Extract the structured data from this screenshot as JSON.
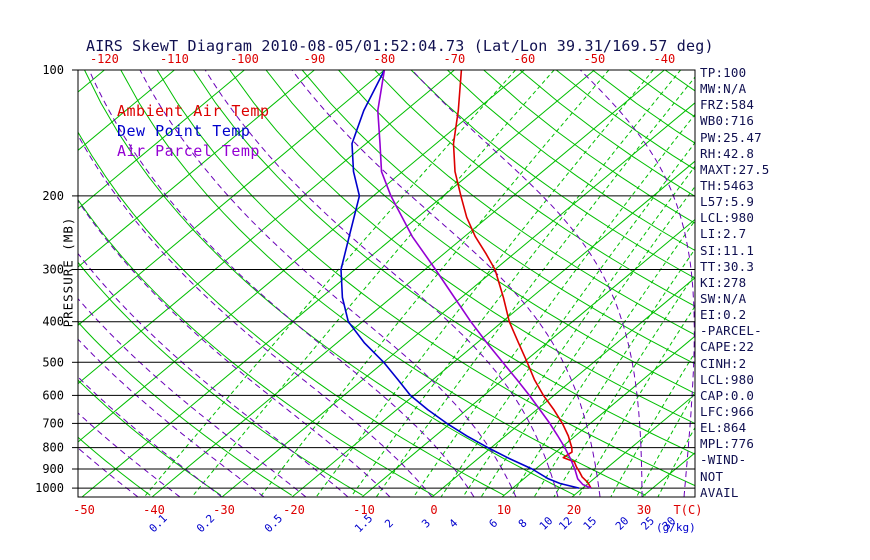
{
  "title": "AIRS SkewT Diagram 2010-08-05/01:52:04.73 (Lat/Lon 39.31/169.57 deg)",
  "legend": {
    "ambient": "Ambient Air Temp",
    "dewpoint": "Dew Point Temp",
    "parcel": "Air Parcel Temp"
  },
  "axes": {
    "y_label": "PRESSURE (MB)",
    "pressure_ticks": [
      100,
      200,
      300,
      400,
      500,
      600,
      700,
      800,
      900,
      1000
    ],
    "top_temp_ticks": [
      -120,
      -110,
      -100,
      -90,
      -80,
      -70,
      -60,
      -50,
      -40
    ],
    "bottom_temp_ticks": [
      -50,
      -40,
      -30,
      -20,
      -10,
      0,
      10,
      20,
      30
    ],
    "bottom_temp_unit": "T(C)",
    "mixing_ratio_ticks": [
      0.1,
      0.2,
      0.5,
      1.5,
      2,
      3,
      4,
      6,
      8,
      10,
      12,
      15,
      20,
      25,
      30
    ],
    "mixing_ratio_unit": "(g/kg)"
  },
  "panel": {
    "lines": [
      "TP:100",
      "MW:N/A",
      "FRZ:584",
      "WB0:716",
      "PW:25.47",
      "RH:42.8",
      "MAXT:27.5",
      "TH:5463",
      "L57:5.9",
      "LCL:980",
      "LI:2.7",
      "SI:11.1",
      "TT:30.3",
      "KI:278",
      "SW:N/A",
      "EI:0.2",
      "-PARCEL-",
      "CAPE:22",
      "CINH:2",
      "LCL:980",
      "CAP:0.0",
      "LFC:966",
      "EL:864",
      "MPL:776",
      "-WIND-",
      "NOT",
      "AVAIL"
    ]
  },
  "colors": {
    "background": "#FFFFFF",
    "title_text": "#101050",
    "panel_text": "#101050",
    "axis": "#000000",
    "pressure_label": "#000000",
    "grid_green": "#00BE00",
    "moist_purple": "#6A00B8",
    "temp_red": "#DD0000",
    "dew_blue": "#0000CC",
    "parcel_violet": "#9400D3",
    "tick_red": "#DD0000",
    "tick_blue": "#0000CC"
  },
  "chart_data": {
    "type": "line",
    "variant": "skewt-log-p",
    "title": "AIRS SkewT Diagram 2010-08-05/01:52:04.73 (Lat/Lon 39.31/169.57 deg)",
    "xlabel": "T(C)",
    "ylabel": "PRESSURE (MB)",
    "pressure_range_mb": [
      100,
      1050
    ],
    "grid": {
      "isotherms_c": {
        "min": -120,
        "max": 30,
        "step": 10
      },
      "dry_adiabats_k": {
        "min": 230,
        "max": 460,
        "step": 10
      },
      "moist_adiabats_c": {
        "min": -42,
        "max": 36,
        "step": 6
      },
      "mixing_ratio_lines_gkg": [
        0.1,
        0.2,
        0.5,
        1,
        1.5,
        2,
        3,
        4,
        5,
        6,
        8,
        10,
        12,
        15,
        20,
        25,
        30
      ],
      "pressure_lines_mb": [
        100,
        200,
        300,
        400,
        500,
        600,
        700,
        800,
        900,
        1000
      ]
    },
    "series": [
      {
        "name": "Ambient Air Temp",
        "color_key": "temp_red",
        "points": [
          [
            100,
            -69
          ],
          [
            125,
            -62.5
          ],
          [
            150,
            -57.5
          ],
          [
            175,
            -52.5
          ],
          [
            200,
            -47.5
          ],
          [
            225,
            -43
          ],
          [
            250,
            -38.5
          ],
          [
            275,
            -34
          ],
          [
            300,
            -30
          ],
          [
            350,
            -24
          ],
          [
            400,
            -19
          ],
          [
            450,
            -14
          ],
          [
            500,
            -9.5
          ],
          [
            550,
            -5.5
          ],
          [
            600,
            -1.5
          ],
          [
            650,
            2.5
          ],
          [
            700,
            6
          ],
          [
            750,
            9
          ],
          [
            800,
            11.5
          ],
          [
            820,
            12.3
          ],
          [
            845,
            12.0
          ],
          [
            865,
            14.3
          ],
          [
            890,
            15.5
          ],
          [
            915,
            16.8
          ],
          [
            940,
            18
          ],
          [
            970,
            19.8
          ],
          [
            1000,
            21.2
          ]
        ]
      },
      {
        "name": "Dew Point Temp",
        "color_key": "dew_blue",
        "points": [
          [
            100,
            -80
          ],
          [
            125,
            -76
          ],
          [
            150,
            -72
          ],
          [
            175,
            -67
          ],
          [
            200,
            -62
          ],
          [
            250,
            -56.5
          ],
          [
            300,
            -52
          ],
          [
            350,
            -47
          ],
          [
            400,
            -42
          ],
          [
            450,
            -36
          ],
          [
            500,
            -30
          ],
          [
            550,
            -25
          ],
          [
            600,
            -20.5
          ],
          [
            650,
            -15.5
          ],
          [
            700,
            -10.5
          ],
          [
            750,
            -5.5
          ],
          [
            800,
            -0.5
          ],
          [
            850,
            4.5
          ],
          [
            900,
            9.5
          ],
          [
            950,
            13.5
          ],
          [
            975,
            16
          ],
          [
            1000,
            19.5
          ]
        ]
      },
      {
        "name": "Air Parcel Temp",
        "color_key": "parcel_violet",
        "points": [
          [
            100,
            -80
          ],
          [
            125,
            -74
          ],
          [
            150,
            -68
          ],
          [
            175,
            -63
          ],
          [
            200,
            -57.5
          ],
          [
            250,
            -47.5
          ],
          [
            300,
            -38.5
          ],
          [
            350,
            -31
          ],
          [
            400,
            -24.5
          ],
          [
            450,
            -18.5
          ],
          [
            500,
            -13
          ],
          [
            550,
            -8
          ],
          [
            600,
            -3.5
          ],
          [
            650,
            0.5
          ],
          [
            700,
            4.2
          ],
          [
            750,
            7.5
          ],
          [
            800,
            10.5
          ],
          [
            850,
            13.2
          ],
          [
            900,
            15.6
          ],
          [
            950,
            17.7
          ],
          [
            980,
            19.4
          ],
          [
            1000,
            21.2
          ]
        ]
      }
    ]
  }
}
